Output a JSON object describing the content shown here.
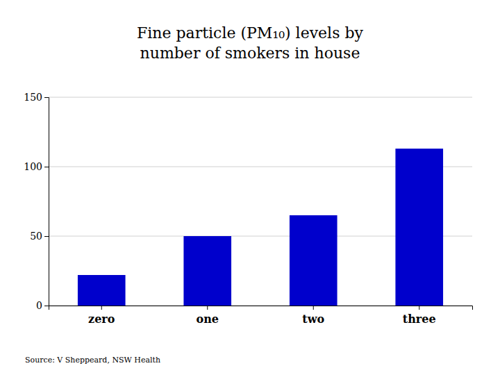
{
  "chart_data": {
    "type": "bar",
    "title": "Fine particle (PM₁₀) levels by number of smokers in house",
    "source": "Source: V Sheppeard, NSW Health",
    "categories": [
      "zero",
      "one",
      "two",
      "three"
    ],
    "values": [
      22,
      50,
      65,
      113
    ],
    "color": "#0000CC",
    "ylim": [
      0,
      150
    ],
    "yticks": [
      0,
      50,
      100,
      150
    ],
    "grid": true
  }
}
